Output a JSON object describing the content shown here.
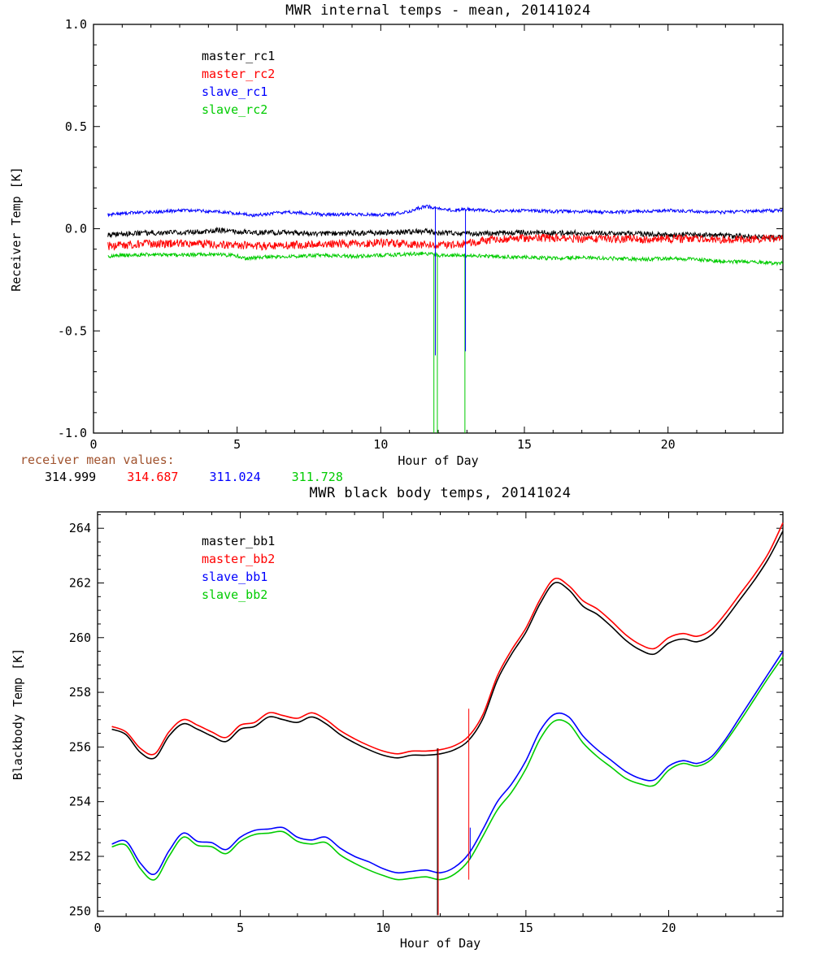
{
  "figure": {
    "receiver_means_label": "receiver mean values:",
    "receiver_means_label_color": "#a0522d",
    "receiver_means": [
      {
        "value": "314.999",
        "color": "#000000"
      },
      {
        "value": "314.687",
        "color": "#ff0000"
      },
      {
        "value": "311.024",
        "color": "#0000ff"
      },
      {
        "value": "311.728",
        "color": "#00cc00"
      }
    ]
  },
  "chart_data": [
    {
      "type": "line",
      "title": "MWR internal temps - mean, 20141024",
      "xlabel": "Hour of Day",
      "ylabel": "Receiver Temp [K]",
      "xlim": [
        0,
        24
      ],
      "ylim": [
        -1.0,
        1.0
      ],
      "xticks": [
        0,
        5,
        10,
        15,
        20
      ],
      "xtick_labels": [
        "0",
        "5",
        "10",
        "15",
        "20"
      ],
      "yticks": [
        -1.0,
        -0.5,
        0.0,
        0.5,
        1.0
      ],
      "ytick_labels": [
        "-1.0",
        "-0.5",
        "0.0",
        "0.5",
        "1.0"
      ],
      "grid": false,
      "legend_position": "upper-left-inside",
      "series": [
        {
          "name": "master_rc1",
          "color": "#000000",
          "noise": 0.013,
          "x": [
            0.5,
            1,
            2,
            3,
            4,
            4.3,
            4.6,
            5,
            6,
            7,
            8,
            9,
            10,
            11,
            11.5,
            12,
            13,
            14,
            15,
            16,
            17,
            18,
            19,
            20,
            21,
            22,
            23,
            24
          ],
          "y": [
            -0.03,
            -0.025,
            -0.02,
            -0.02,
            -0.012,
            -0.005,
            -0.01,
            -0.015,
            -0.02,
            -0.02,
            -0.025,
            -0.022,
            -0.02,
            -0.015,
            -0.012,
            -0.02,
            -0.025,
            -0.02,
            -0.018,
            -0.02,
            -0.02,
            -0.022,
            -0.025,
            -0.03,
            -0.03,
            -0.035,
            -0.04,
            -0.045
          ]
        },
        {
          "name": "master_rc2",
          "color": "#ff0000",
          "noise": 0.02,
          "x": [
            0.5,
            1,
            2,
            3,
            4,
            5,
            6,
            7,
            8,
            9,
            10,
            11,
            12,
            12.8,
            13.2,
            14,
            15,
            16,
            17,
            18,
            19,
            20,
            21,
            22,
            23,
            24
          ],
          "y": [
            -0.085,
            -0.08,
            -0.075,
            -0.072,
            -0.075,
            -0.08,
            -0.085,
            -0.08,
            -0.075,
            -0.073,
            -0.07,
            -0.075,
            -0.08,
            -0.078,
            -0.065,
            -0.052,
            -0.047,
            -0.045,
            -0.05,
            -0.05,
            -0.052,
            -0.05,
            -0.05,
            -0.052,
            -0.05,
            -0.045
          ]
        },
        {
          "name": "slave_rc1",
          "color": "#0000ff",
          "noise": 0.008,
          "x": [
            0.5,
            1,
            1.5,
            2,
            2.5,
            3,
            3.5,
            4,
            4.5,
            5,
            5.5,
            6,
            6.5,
            7,
            7.5,
            8,
            9,
            10,
            10.5,
            11,
            11.3,
            11.6,
            12,
            12.5,
            13,
            14,
            15,
            16,
            17,
            18,
            19,
            20,
            21,
            22,
            23,
            24
          ],
          "y": [
            0.07,
            0.075,
            0.08,
            0.08,
            0.085,
            0.09,
            0.09,
            0.085,
            0.08,
            0.075,
            0.065,
            0.07,
            0.08,
            0.08,
            0.075,
            0.07,
            0.07,
            0.068,
            0.072,
            0.085,
            0.1,
            0.11,
            0.1,
            0.09,
            0.095,
            0.085,
            0.09,
            0.085,
            0.085,
            0.08,
            0.085,
            0.09,
            0.085,
            0.08,
            0.085,
            0.09
          ]
        },
        {
          "name": "slave_rc2",
          "color": "#00cc00",
          "noise": 0.009,
          "x": [
            0.5,
            1,
            2,
            3,
            4,
            5,
            5.3,
            5.6,
            6,
            7,
            8,
            9,
            10,
            11,
            11.5,
            12,
            13,
            14,
            15,
            16,
            17,
            18,
            19,
            20,
            21,
            21.5,
            22,
            23,
            24
          ],
          "y": [
            -0.135,
            -0.13,
            -0.125,
            -0.13,
            -0.125,
            -0.132,
            -0.148,
            -0.142,
            -0.138,
            -0.135,
            -0.13,
            -0.135,
            -0.13,
            -0.125,
            -0.12,
            -0.13,
            -0.13,
            -0.135,
            -0.14,
            -0.145,
            -0.14,
            -0.145,
            -0.15,
            -0.145,
            -0.15,
            -0.156,
            -0.16,
            -0.163,
            -0.17
          ]
        }
      ],
      "spikes": [
        {
          "color": "#00cc00",
          "x": 11.85,
          "y1": -1.0,
          "y2": -0.125
        },
        {
          "color": "#00cc00",
          "x": 11.97,
          "y1": -1.0,
          "y2": -0.125
        },
        {
          "color": "#00cc00",
          "x": 12.93,
          "y1": -1.0,
          "y2": -0.128
        },
        {
          "color": "#0000ff",
          "x": 11.9,
          "y1": -0.62,
          "y2": 0.11
        },
        {
          "color": "#0000ff",
          "x": 12.95,
          "y1": -0.6,
          "y2": 0.095
        }
      ]
    },
    {
      "type": "line",
      "title": "MWR black body temps, 20141024",
      "xlabel": "Hour of Day",
      "ylabel": "Blackbody Temp [K]",
      "xlim": [
        0,
        24
      ],
      "ylim": [
        249.8,
        264.6
      ],
      "xticks": [
        0,
        5,
        10,
        15,
        20
      ],
      "xtick_labels": [
        "0",
        "5",
        "10",
        "15",
        "20"
      ],
      "yticks": [
        250,
        252,
        254,
        256,
        258,
        260,
        262,
        264
      ],
      "ytick_labels": [
        "250",
        "252",
        "254",
        "256",
        "258",
        "260",
        "262",
        "264"
      ],
      "grid": false,
      "legend_position": "upper-left-inside",
      "x": [
        0.5,
        1,
        1.5,
        2,
        2.5,
        3,
        3.5,
        4,
        4.5,
        5,
        5.5,
        6,
        6.5,
        7,
        7.5,
        8,
        8.5,
        9,
        9.5,
        10,
        10.5,
        11,
        11.5,
        12,
        12.5,
        13,
        13.5,
        14,
        14.5,
        15,
        15.5,
        16,
        16.5,
        17,
        17.5,
        18,
        18.5,
        19,
        19.5,
        20,
        20.5,
        21,
        21.5,
        22,
        22.5,
        23,
        23.5,
        24
      ],
      "series": [
        {
          "name": "master_bb1",
          "color": "#000000",
          "noise": 0,
          "y": [
            256.65,
            256.45,
            255.8,
            255.6,
            256.4,
            256.85,
            256.65,
            256.4,
            256.2,
            256.65,
            256.75,
            257.1,
            257.0,
            256.9,
            257.1,
            256.85,
            256.45,
            256.15,
            255.9,
            255.7,
            255.6,
            255.7,
            255.7,
            255.75,
            255.9,
            256.25,
            257.05,
            258.45,
            259.4,
            260.2,
            261.25,
            262.0,
            261.75,
            261.15,
            260.85,
            260.4,
            259.9,
            259.55,
            259.4,
            259.8,
            259.95,
            259.85,
            260.1,
            260.7,
            261.4,
            262.1,
            262.9,
            263.9
          ]
        },
        {
          "name": "master_bb2",
          "color": "#ff0000",
          "noise": 0,
          "y": [
            256.75,
            256.55,
            255.95,
            255.75,
            256.55,
            257.0,
            256.8,
            256.55,
            256.35,
            256.8,
            256.9,
            257.25,
            257.15,
            257.05,
            257.25,
            257.0,
            256.6,
            256.3,
            256.05,
            255.85,
            255.75,
            255.85,
            255.85,
            255.9,
            256.05,
            256.4,
            257.2,
            258.6,
            259.55,
            260.35,
            261.4,
            262.15,
            261.9,
            261.35,
            261.05,
            260.6,
            260.1,
            259.75,
            259.6,
            260.0,
            260.15,
            260.05,
            260.3,
            260.9,
            261.6,
            262.3,
            263.1,
            264.2
          ]
        },
        {
          "name": "slave_bb1",
          "color": "#0000ff",
          "noise": 0,
          "y": [
            252.45,
            252.55,
            251.75,
            251.35,
            252.2,
            252.85,
            252.55,
            252.5,
            252.25,
            252.7,
            252.95,
            253.0,
            253.05,
            252.7,
            252.6,
            252.7,
            252.3,
            252.0,
            251.8,
            251.55,
            251.4,
            251.45,
            251.5,
            251.4,
            251.6,
            252.1,
            253.0,
            254.0,
            254.65,
            255.5,
            256.6,
            257.2,
            257.1,
            256.4,
            255.9,
            255.5,
            255.1,
            254.85,
            254.8,
            255.3,
            255.5,
            255.4,
            255.65,
            256.3,
            257.1,
            257.9,
            258.7,
            259.5
          ]
        },
        {
          "name": "slave_bb2",
          "color": "#00cc00",
          "noise": 0,
          "y": [
            252.35,
            252.4,
            251.55,
            251.15,
            252.0,
            252.7,
            252.4,
            252.35,
            252.1,
            252.55,
            252.8,
            252.85,
            252.9,
            252.55,
            252.45,
            252.5,
            252.05,
            251.75,
            251.5,
            251.3,
            251.15,
            251.2,
            251.25,
            251.15,
            251.35,
            251.85,
            252.75,
            253.7,
            254.35,
            255.2,
            256.3,
            256.95,
            256.85,
            256.15,
            255.65,
            255.25,
            254.85,
            254.65,
            254.6,
            255.15,
            255.4,
            255.3,
            255.55,
            256.2,
            256.95,
            257.75,
            258.55,
            259.3
          ]
        }
      ],
      "spikes": [
        {
          "color": "#000000",
          "x": 11.9,
          "y1": 249.85,
          "y2": 255.95
        },
        {
          "color": "#ff0000",
          "x": 11.93,
          "y1": 249.85,
          "y2": 255.95
        },
        {
          "color": "#ff0000",
          "x": 13.0,
          "y1": 251.15,
          "y2": 257.4
        },
        {
          "color": "#0000ff",
          "x": 13.05,
          "y1": 251.9,
          "y2": 253.05
        }
      ]
    }
  ]
}
